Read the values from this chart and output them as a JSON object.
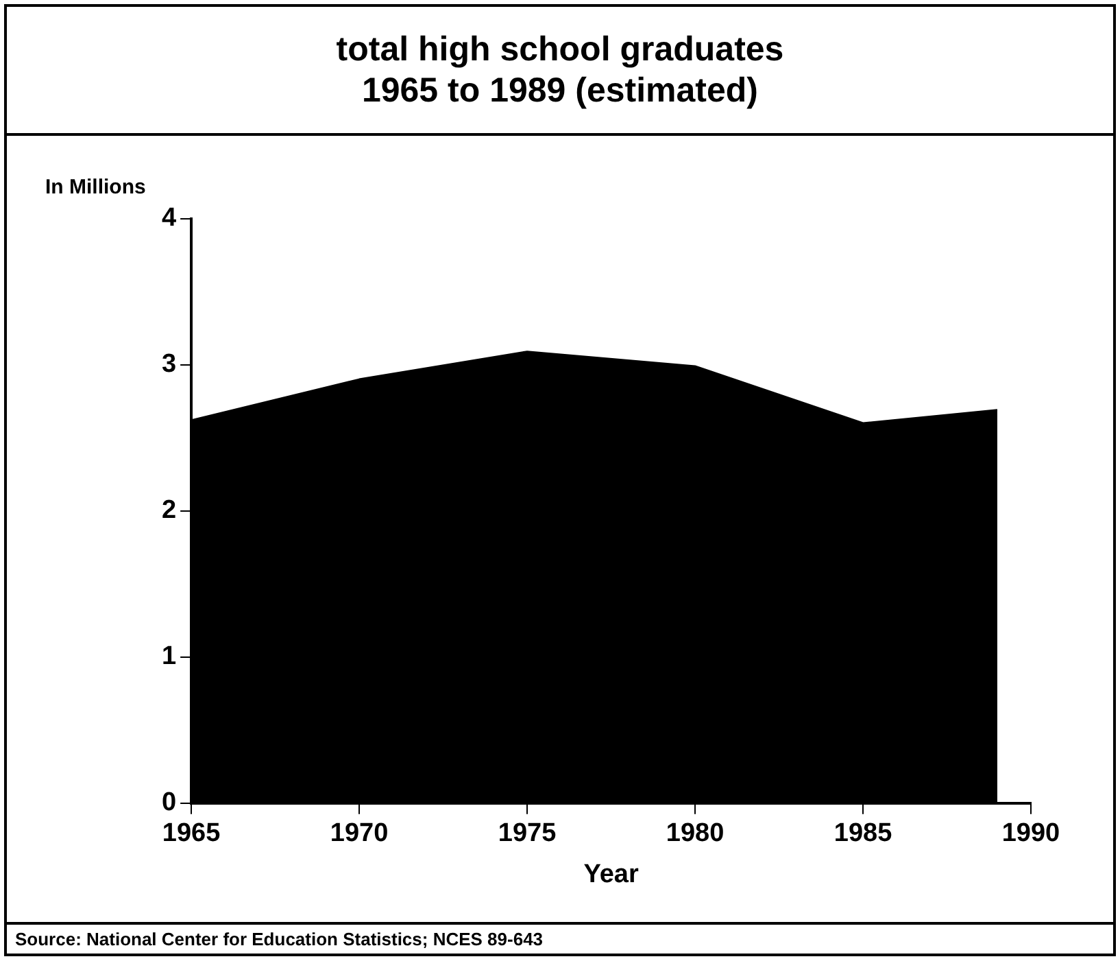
{
  "chart_data": {
    "type": "area",
    "title": "total high school graduates\n1965 to 1989 (estimated)",
    "xlabel": "Year",
    "ylabel": "In Millions",
    "x": [
      1965,
      1970,
      1975,
      1980,
      1985,
      1989
    ],
    "series": [
      {
        "color": "#000000",
        "values": [
          2.62,
          2.9,
          3.09,
          2.99,
          2.6,
          2.69
        ]
      }
    ],
    "xlim": [
      1965,
      1990
    ],
    "xticks": [
      1965,
      1970,
      1975,
      1980,
      1985,
      1990
    ],
    "ylim": [
      0,
      4
    ],
    "yticks": [
      0,
      1,
      2,
      3,
      4
    ],
    "legend": false,
    "annotations": [
      "Source: National Center for Education Statistics; NCES 89-643"
    ]
  }
}
